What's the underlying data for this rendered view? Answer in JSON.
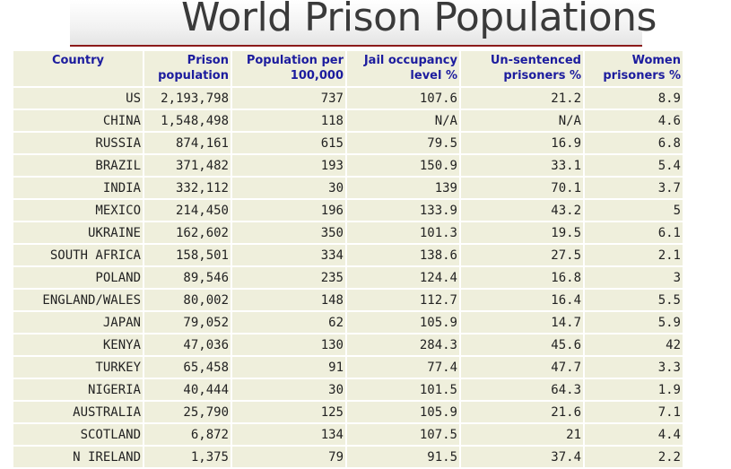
{
  "title": "World Prison Populations",
  "columns": [
    "Country",
    "Prison population",
    "Population per 100,000",
    "Jail occupancy level %",
    "Un-sentenced prisoners %",
    "Women prisoners %"
  ],
  "rows": [
    [
      "US",
      "2,193,798",
      "737",
      "107.6",
      "21.2",
      "8.9"
    ],
    [
      "CHINA",
      "1,548,498",
      "118",
      "N/A",
      "N/A",
      "4.6"
    ],
    [
      "RUSSIA",
      "874,161",
      "615",
      "79.5",
      "16.9",
      "6.8"
    ],
    [
      "BRAZIL",
      "371,482",
      "193",
      "150.9",
      "33.1",
      "5.4"
    ],
    [
      "INDIA",
      "332,112",
      "30",
      "139",
      "70.1",
      "3.7"
    ],
    [
      "MEXICO",
      "214,450",
      "196",
      "133.9",
      "43.2",
      "5"
    ],
    [
      "UKRAINE",
      "162,602",
      "350",
      "101.3",
      "19.5",
      "6.1"
    ],
    [
      "SOUTH AFRICA",
      "158,501",
      "334",
      "138.6",
      "27.5",
      "2.1"
    ],
    [
      "POLAND",
      "89,546",
      "235",
      "124.4",
      "16.8",
      "3"
    ],
    [
      "ENGLAND/WALES",
      "80,002",
      "148",
      "112.7",
      "16.4",
      "5.5"
    ],
    [
      "JAPAN",
      "79,052",
      "62",
      "105.9",
      "14.7",
      "5.9"
    ],
    [
      "KENYA",
      "47,036",
      "130",
      "284.3",
      "45.6",
      "42"
    ],
    [
      "TURKEY",
      "65,458",
      "91",
      "77.4",
      "47.7",
      "3.3"
    ],
    [
      "NIGERIA",
      "40,444",
      "30",
      "101.5",
      "64.3",
      "1.9"
    ],
    [
      "AUSTRALIA",
      "25,790",
      "125",
      "105.9",
      "21.6",
      "7.1"
    ],
    [
      "SCOTLAND",
      "6,872",
      "134",
      "107.5",
      "21",
      "4.4"
    ],
    [
      "N IRELAND",
      "1,375",
      "79",
      "91.5",
      "37.4",
      "2.2"
    ]
  ]
}
